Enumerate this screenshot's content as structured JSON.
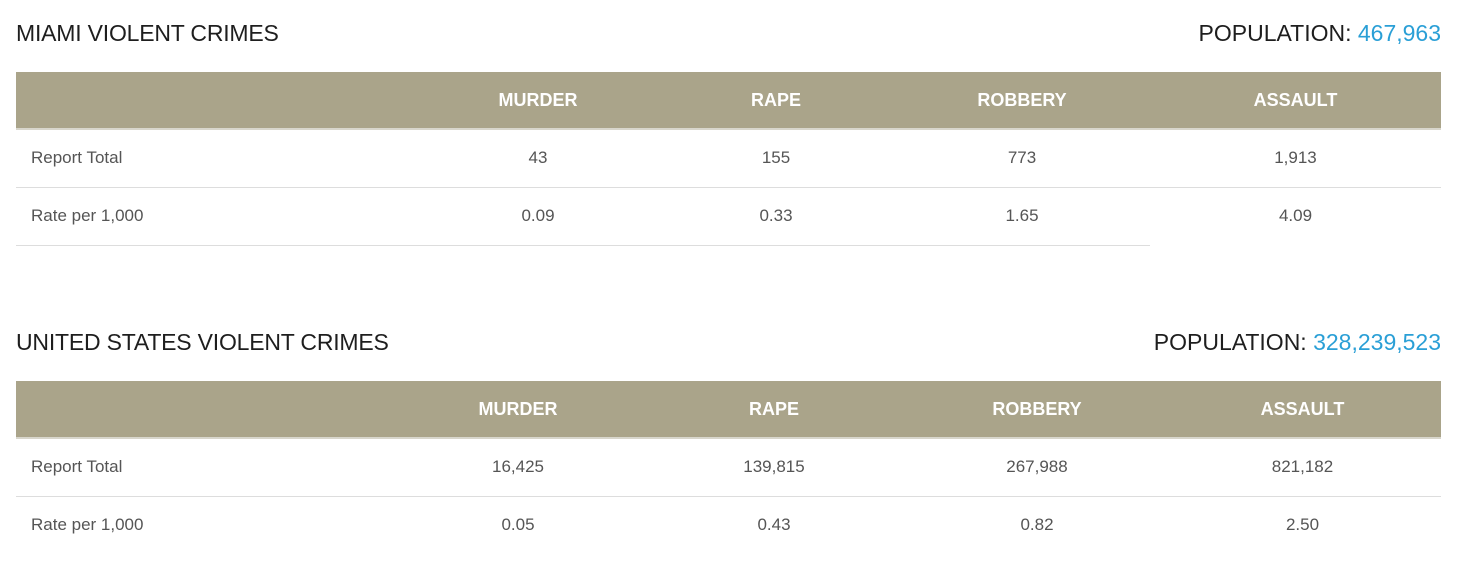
{
  "miami": {
    "title": "MIAMI VIOLENT CRIMES",
    "population_label": "POPULATION:",
    "population_value": "467,963",
    "columns": [
      "",
      "MURDER",
      "RAPE",
      "ROBBERY",
      "ASSAULT"
    ],
    "rows": [
      {
        "label": "Report Total",
        "murder": "43",
        "rape": "155",
        "robbery": "773",
        "assault": "1,913"
      },
      {
        "label": "Rate per 1,000",
        "murder": "0.09",
        "rape": "0.33",
        "robbery": "1.65",
        "assault": "4.09"
      }
    ]
  },
  "us": {
    "title": "UNITED STATES VIOLENT CRIMES",
    "population_label": "POPULATION:",
    "population_value": "328,239,523",
    "columns": [
      "",
      "MURDER",
      "RAPE",
      "ROBBERY",
      "ASSAULT"
    ],
    "rows": [
      {
        "label": "Report Total",
        "murder": "16,425",
        "rape": "139,815",
        "robbery": "267,988",
        "assault": "821,182"
      },
      {
        "label": "Rate per 1,000",
        "murder": "0.05",
        "rape": "0.43",
        "robbery": "0.82",
        "assault": "2.50"
      }
    ]
  },
  "colors": {
    "header_bg": "#aaa48a",
    "accent": "#2a9fd6"
  }
}
